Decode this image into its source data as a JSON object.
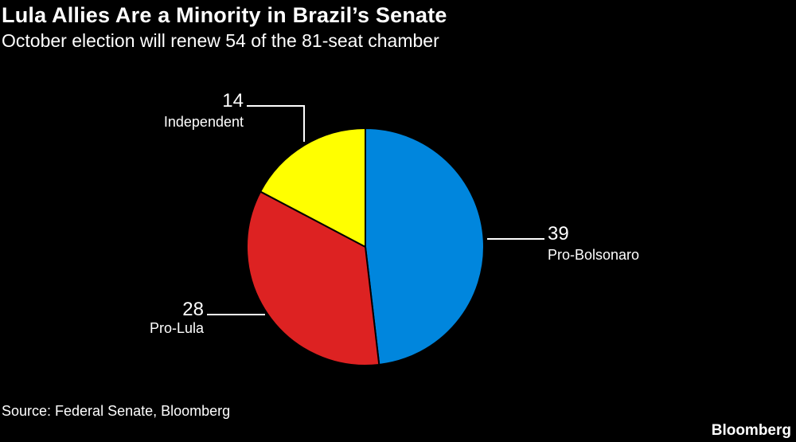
{
  "header": {
    "title": "Lula Allies Are a Minority in Brazil’s Senate",
    "subtitle": "October election will renew 54 of the 81-seat chamber"
  },
  "footer": {
    "source": "Source: Federal Senate, Bloomberg",
    "brand": "Bloomberg"
  },
  "chart_data": {
    "type": "pie",
    "start": "12 o'clock",
    "direction": "clockwise",
    "slices": [
      {
        "label": "Pro-Bolsonaro",
        "value": 39,
        "color": "#0086DD"
      },
      {
        "label": "Pro-Lula",
        "value": 28,
        "color": "#DD2222"
      },
      {
        "label": "Independent",
        "value": 14,
        "color": "#FFFF00"
      }
    ],
    "slice_border_color": "#000000",
    "label_line_color": "#ffffff"
  }
}
